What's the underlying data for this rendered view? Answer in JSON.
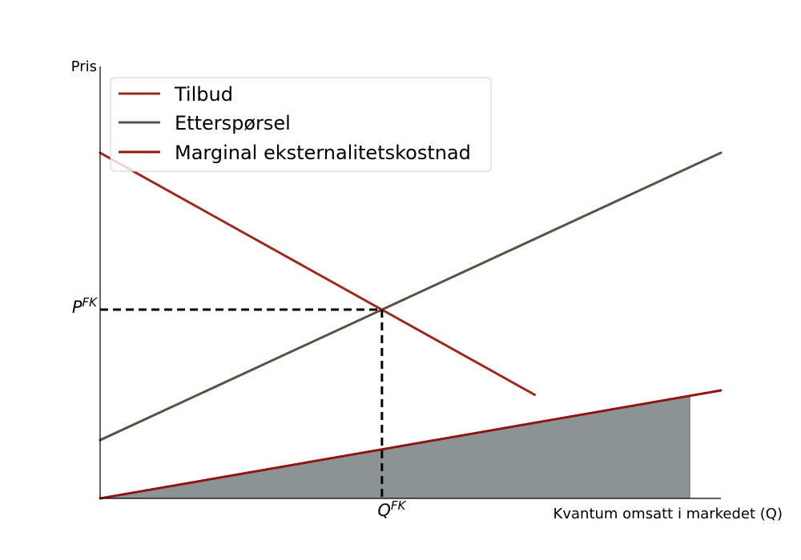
{
  "chart_data": {
    "type": "line",
    "xlabel": "Kvantum omsatt i markedet (Q)",
    "ylabel": "Pris",
    "xlim": [
      0,
      10
    ],
    "ylim": [
      0,
      10
    ],
    "xticks": [
      {
        "x": 4.54,
        "base": "Q",
        "sup": "FK"
      }
    ],
    "yticks": [
      {
        "y": 4.37,
        "base": "P",
        "sup": "FK"
      }
    ],
    "series": [
      {
        "name": "Tilbud",
        "color": "#9b2a22",
        "points": [
          [
            0,
            8.0
          ],
          [
            7.0,
            2.4
          ]
        ]
      },
      {
        "name": "Etterspørsel",
        "color": "#5b5147",
        "points": [
          [
            0,
            1.35
          ],
          [
            10.0,
            8.0
          ]
        ]
      },
      {
        "name": "Marginal eksternalitetskostnad",
        "color": "#8f1612",
        "points": [
          [
            0,
            0
          ],
          [
            10.0,
            2.5
          ]
        ]
      }
    ],
    "shaded_area": {
      "color": "#8c9393",
      "x_from": 0,
      "x_to": 9.5,
      "under": "Marginal eksternalitetskostnad"
    },
    "reference_lines": {
      "x": 4.54,
      "y": 4.37,
      "style": "dashed",
      "color": "#000000"
    },
    "legend": {
      "position": "top-left"
    },
    "grid": false
  }
}
